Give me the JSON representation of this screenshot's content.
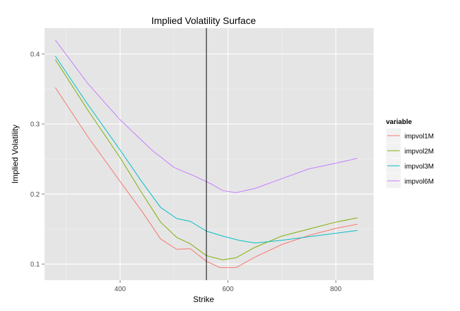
{
  "chart_data": {
    "type": "line",
    "title": "Implied Volatility Surface",
    "xlabel": "Strike",
    "ylabel": "Implied Volatility",
    "xlim": [
      260,
      870
    ],
    "ylim": [
      0.077,
      0.437
    ],
    "x_ticks": [
      400,
      600,
      800
    ],
    "y_ticks": [
      0.1,
      0.2,
      0.3,
      0.4
    ],
    "grid": true,
    "vline_x": 560,
    "legend": {
      "title": "variable",
      "placement": "right"
    },
    "series": [
      {
        "name": "impvol1M",
        "color": "#F8766D",
        "points": [
          [
            280,
            0.352
          ],
          [
            340,
            0.282
          ],
          [
            400,
            0.218
          ],
          [
            440,
            0.176
          ],
          [
            475,
            0.136
          ],
          [
            505,
            0.121
          ],
          [
            530,
            0.122
          ],
          [
            560,
            0.104
          ],
          [
            585,
            0.095
          ],
          [
            615,
            0.095
          ],
          [
            650,
            0.11
          ],
          [
            700,
            0.128
          ],
          [
            750,
            0.141
          ],
          [
            800,
            0.151
          ],
          [
            840,
            0.157
          ]
        ]
      },
      {
        "name": "impvol2M",
        "color": "#7CAE00",
        "points": [
          [
            280,
            0.392
          ],
          [
            340,
            0.32
          ],
          [
            400,
            0.252
          ],
          [
            440,
            0.202
          ],
          [
            475,
            0.16
          ],
          [
            505,
            0.138
          ],
          [
            530,
            0.129
          ],
          [
            560,
            0.112
          ],
          [
            590,
            0.106
          ],
          [
            615,
            0.109
          ],
          [
            650,
            0.124
          ],
          [
            700,
            0.14
          ],
          [
            750,
            0.15
          ],
          [
            800,
            0.16
          ],
          [
            840,
            0.166
          ]
        ]
      },
      {
        "name": "impvol3M",
        "color": "#00BFC4",
        "points": [
          [
            280,
            0.397
          ],
          [
            340,
            0.328
          ],
          [
            400,
            0.263
          ],
          [
            440,
            0.218
          ],
          [
            475,
            0.181
          ],
          [
            505,
            0.165
          ],
          [
            530,
            0.161
          ],
          [
            560,
            0.147
          ],
          [
            590,
            0.14
          ],
          [
            620,
            0.134
          ],
          [
            650,
            0.13
          ],
          [
            700,
            0.134
          ],
          [
            750,
            0.139
          ],
          [
            800,
            0.144
          ],
          [
            840,
            0.148
          ]
        ]
      },
      {
        "name": "impvol6M",
        "color": "#C77CFF",
        "points": [
          [
            280,
            0.42
          ],
          [
            340,
            0.358
          ],
          [
            400,
            0.306
          ],
          [
            460,
            0.262
          ],
          [
            500,
            0.238
          ],
          [
            540,
            0.225
          ],
          [
            570,
            0.214
          ],
          [
            590,
            0.205
          ],
          [
            615,
            0.202
          ],
          [
            650,
            0.208
          ],
          [
            700,
            0.222
          ],
          [
            750,
            0.236
          ],
          [
            800,
            0.244
          ],
          [
            840,
            0.251
          ]
        ]
      }
    ]
  }
}
